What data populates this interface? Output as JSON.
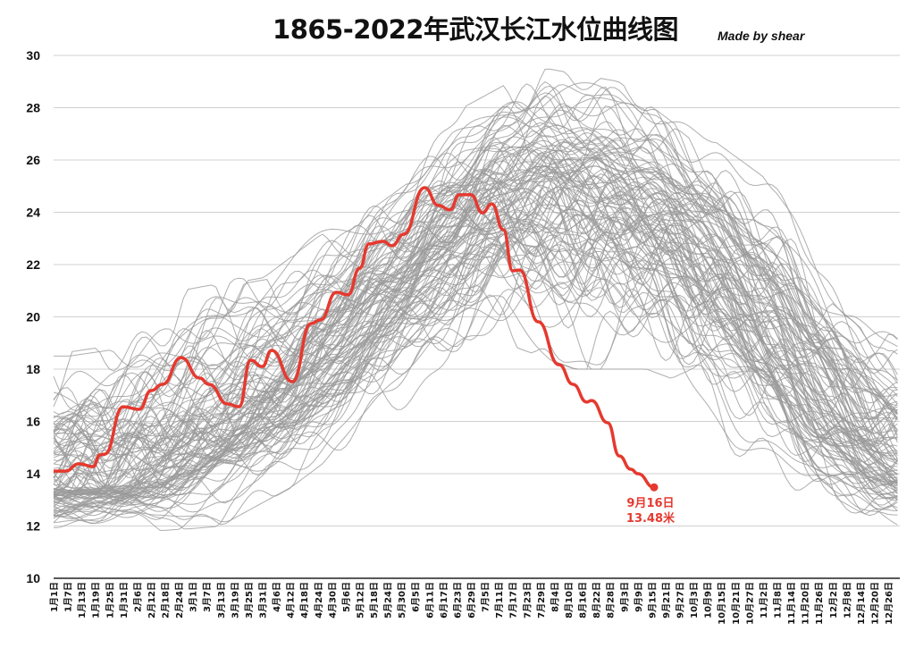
{
  "chart_data": {
    "type": "line",
    "title": "1865-2022年武汉长江水位曲线图",
    "credit": "Made by shear",
    "xlabel": "",
    "ylabel": "",
    "ylim": [
      10,
      30
    ],
    "y_ticks": [
      "10",
      "12",
      "14",
      "16",
      "18",
      "20",
      "22",
      "24",
      "26",
      "28",
      "30"
    ],
    "grid": "horizontal",
    "x_ticks": [
      "1月1日",
      "1月7日",
      "1月13日",
      "1月19日",
      "1月25日",
      "1月31日",
      "2月6日",
      "2月12日",
      "2月18日",
      "2月24日",
      "3月1日",
      "3月7日",
      "3月13日",
      "3月19日",
      "3月25日",
      "3月31日",
      "4月6日",
      "4月12日",
      "4月18日",
      "4月24日",
      "4月30日",
      "5月6日",
      "5月12日",
      "5月18日",
      "5月24日",
      "5月30日",
      "6月5日",
      "6月11日",
      "6月17日",
      "6月23日",
      "6月29日",
      "7月5日",
      "7月11日",
      "7月17日",
      "7月23日",
      "7月29日",
      "8月4日",
      "8月10日",
      "8月16日",
      "8月22日",
      "8月28日",
      "9月3日",
      "9月9日",
      "9月15日",
      "9月21日",
      "9月27日",
      "10月3日",
      "10月9日",
      "10月15日",
      "10月21日",
      "10月27日",
      "11月2日",
      "11月8日",
      "11月14日",
      "11月20日",
      "11月26日",
      "12月2日",
      "12月8日",
      "12月14日",
      "12月20日",
      "12月26日"
    ],
    "colors": {
      "highlight": "#e5392f",
      "history": "#9a9a9a",
      "grid": "#d0d0d0"
    },
    "historical_range": {
      "x": [
        "1月1日",
        "2月1日",
        "3月1日",
        "4月1日",
        "5月1日",
        "6月1日",
        "7月1日",
        "8月1日",
        "9月1日",
        "10月1日",
        "11月1日",
        "12月1日",
        "12月31日"
      ],
      "low": [
        11.8,
        11.8,
        12.0,
        13.5,
        15.5,
        17.0,
        19.0,
        18.0,
        18.0,
        17.0,
        14.0,
        12.5,
        11.7
      ],
      "typical": [
        13.5,
        13.5,
        15.0,
        16.5,
        19.0,
        21.5,
        24.0,
        25.0,
        24.5,
        23.0,
        19.5,
        16.0,
        14.0
      ],
      "high": [
        18.5,
        18.9,
        21.0,
        21.5,
        23.5,
        25.5,
        28.0,
        29.5,
        29.0,
        27.0,
        25.0,
        21.0,
        18.7
      ]
    },
    "series": [
      {
        "highlight": true,
        "x": [
          "1月1日",
          "1月6日",
          "1月12日",
          "1月18日",
          "1月21日",
          "1月23日",
          "1月31日",
          "2月7日",
          "2月12日",
          "2月17日",
          "2月25日",
          "3月4日",
          "3月8日",
          "3月16日",
          "3月21日",
          "3月26日",
          "3月31日",
          "4月4日",
          "4月13日",
          "4月21日",
          "4月25日",
          "5月2日",
          "5月7日",
          "5月12日",
          "5月16日",
          "5月22日",
          "5月26日",
          "5月31日",
          "6月9日",
          "6月15日",
          "6月20日",
          "6月24日",
          "6月29日",
          "7月4日",
          "7月8日",
          "7月13日",
          "7月17日",
          "7月20日",
          "7月28日",
          "8月6日",
          "8月12日",
          "8月18日",
          "8月20日",
          "8月27日",
          "9月1日",
          "9月6日",
          "9月9日",
          "9月16日"
        ],
        "values": [
          14.1,
          14.1,
          14.38,
          14.27,
          14.72,
          14.75,
          16.56,
          16.46,
          17.18,
          17.42,
          18.44,
          17.66,
          17.42,
          16.67,
          16.56,
          18.34,
          18.1,
          18.72,
          17.52,
          19.74,
          19.88,
          20.94,
          20.84,
          21.86,
          22.79,
          22.89,
          22.72,
          23.16,
          24.94,
          24.26,
          24.09,
          24.67,
          24.67,
          23.98,
          24.32,
          23.33,
          21.76,
          21.79,
          19.81,
          18.17,
          17.42,
          16.74,
          16.8,
          15.95,
          14.68,
          14.17,
          14.0,
          13.48
        ]
      }
    ],
    "annotation": {
      "date": "9月16日",
      "value": "13.48米"
    }
  }
}
